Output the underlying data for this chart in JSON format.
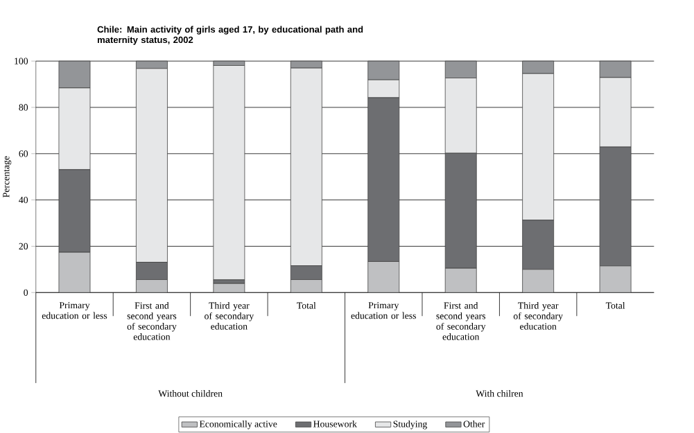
{
  "chart_data": {
    "type": "bar",
    "stacked": true,
    "title": "Chile: Main activity of girls aged 17, by educational path and maternity status, 2002",
    "ylabel": "Percentage",
    "categories": [
      "Primary education or less",
      "First and second years of secondary education",
      "Third year of secondary education",
      "Total",
      "Primary education or less",
      "First and second years of secondary education",
      "Third year of secondary education",
      "Total"
    ],
    "series": [
      {
        "name": "Economically active",
        "color": "#bfc0c2",
        "values": [
          17.4,
          5.6,
          3.9,
          5.6,
          13.4,
          10.5,
          10.0,
          11.5
        ]
      },
      {
        "name": "Housework",
        "color": "#6d6e71",
        "values": [
          35.7,
          7.5,
          1.6,
          6.0,
          70.8,
          49.7,
          21.3,
          51.4
        ]
      },
      {
        "name": "Studying",
        "color": "#e6e7e8",
        "values": [
          35.3,
          83.7,
          92.6,
          85.4,
          7.7,
          32.5,
          63.3,
          30.0
        ]
      },
      {
        "name": "Other",
        "color": "#939598",
        "values": [
          11.6,
          3.2,
          1.9,
          3.0,
          8.1,
          7.3,
          5.4,
          7.1
        ]
      }
    ],
    "annotations": [
      "Without children",
      "With chilren"
    ],
    "ylim": [
      0,
      100
    ],
    "yticks": [
      0,
      20,
      40,
      60,
      80,
      100
    ],
    "grid": "y",
    "legend": "bottom"
  }
}
